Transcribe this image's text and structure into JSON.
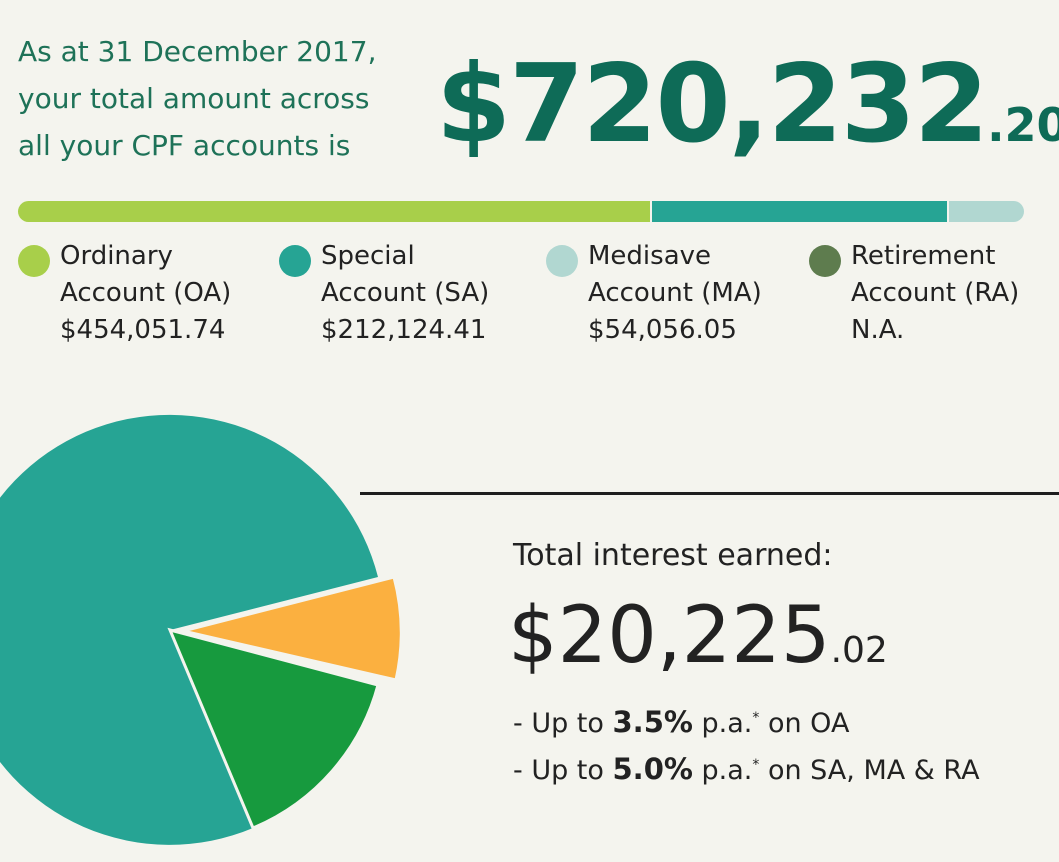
{
  "header": {
    "intro_lines": [
      "As at 31 December 2017,",
      "your total amount across",
      "all your CPF accounts is"
    ],
    "total_whole": "$720,232",
    "total_cents": ".20"
  },
  "accounts": [
    {
      "name_line1": "Ordinary",
      "name_line2": "Account (OA)",
      "amount": "$454,051.74",
      "value": 454051.74,
      "color": "#a8cf4a"
    },
    {
      "name_line1": "Special",
      "name_line2": "Account (SA)",
      "amount": "$212,124.41",
      "value": 212124.41,
      "color": "#26a494"
    },
    {
      "name_line1": "Medisave",
      "name_line2": "Account (MA)",
      "amount": "$54,056.05",
      "value": 54056.05,
      "color": "#b1d7d1"
    },
    {
      "name_line1": "Retirement",
      "name_line2": "Account (RA)",
      "amount": "N.A.",
      "value": 0,
      "color": "#5e7c4e"
    }
  ],
  "pie_slices": [
    {
      "color": "#26a494"
    },
    {
      "color": "#fbb040"
    },
    {
      "color": "#179a3e"
    }
  ],
  "interest": {
    "title": "Total interest earned:",
    "amount_whole": "$20,225",
    "amount_cents": ".02",
    "rates": [
      {
        "prefix": "- Up to ",
        "rate": "3.5%",
        "suffix": " p.a.",
        "mark": "*",
        "scope": " on OA"
      },
      {
        "prefix": "- Up to ",
        "rate": "5.0%",
        "suffix": " p.a.",
        "mark": "*",
        "scope": " on SA, MA & RA"
      }
    ]
  }
}
